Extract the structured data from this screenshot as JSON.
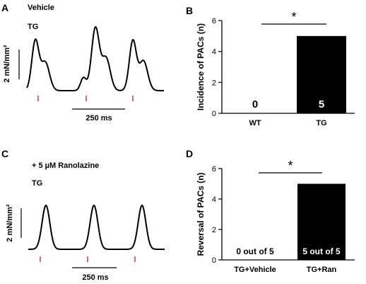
{
  "panels": {
    "A": {
      "letter": "A",
      "condition": "Vehicle",
      "genotype": "TG",
      "scale_force": "2 mN/mm²",
      "scale_time": "250 ms"
    },
    "C": {
      "letter": "C",
      "condition": "+ 5 µM Ranolazine",
      "genotype": "TG",
      "scale_force": "2 mN/mm²",
      "scale_time": "250 ms"
    }
  },
  "chart_data": [
    {
      "panel": "B",
      "type": "bar",
      "categories": [
        "WT",
        "TG"
      ],
      "values": [
        0,
        5
      ],
      "data_labels": [
        "0",
        "5"
      ],
      "ylabel": "Incidence of PACs  (n)",
      "xlabel": "",
      "ylim": [
        0,
        6
      ],
      "yticks": [
        "0",
        "2",
        "4",
        "6"
      ],
      "significance": "*",
      "bar_color": "#000000"
    },
    {
      "panel": "D",
      "type": "bar",
      "categories": [
        "TG+Vehicle",
        "TG+Ran"
      ],
      "values": [
        0,
        5
      ],
      "data_labels": [
        "0 out of 5",
        "5 out of 5"
      ],
      "ylabel": "Reversal of PACs  (n)",
      "xlabel": "",
      "ylim": [
        0,
        6
      ],
      "yticks": [
        "0",
        "2",
        "4",
        "6"
      ],
      "significance": "*",
      "bar_color": "#000000"
    }
  ],
  "colors": {
    "stimulus_marker": "#e0304a",
    "trace": "#000000"
  }
}
